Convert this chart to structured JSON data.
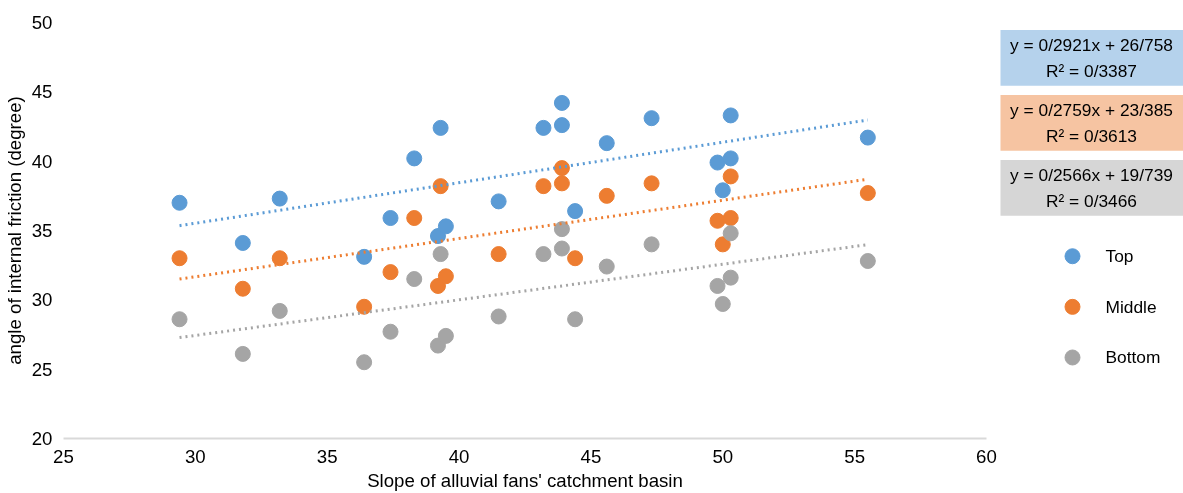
{
  "chart_data": {
    "type": "scatter",
    "xlabel": "Slope of alluvial fans' catchment basin",
    "ylabel": "angle of internal friction (degree)",
    "xlim": [
      25,
      60
    ],
    "xticks": [
      25,
      30,
      35,
      40,
      45,
      50,
      55,
      60
    ],
    "ylim": [
      20,
      50
    ],
    "yticks": [
      20,
      25,
      30,
      35,
      40,
      45,
      50
    ],
    "grid": false,
    "legend": "right",
    "marker": "circle",
    "annotations": [
      "y = 0/2921x + 26/758\nR² = 0/3387",
      "y = 0/2759x + 23/385\nR² = 0/3613",
      "y = 0/2566x + 19/739\nR² = 0/3466"
    ],
    "series": [
      {
        "name": "Top",
        "color": "#5b9bd5",
        "x": [
          29.4,
          31.8,
          33.2,
          36.4,
          37.4,
          38.3,
          39.3,
          39.2,
          39.5,
          41.5,
          43.2,
          43.9,
          43.9,
          44.4,
          45.6,
          47.3,
          49.8,
          50.3,
          50.0,
          50.3,
          55.5
        ],
        "values": [
          37.0,
          34.1,
          37.3,
          33.1,
          35.9,
          40.2,
          42.4,
          34.6,
          35.3,
          37.1,
          42.4,
          44.2,
          42.6,
          36.4,
          41.3,
          43.1,
          39.9,
          40.2,
          37.9,
          43.3,
          41.7
        ]
      },
      {
        "name": "Middle",
        "color": "#ed7d31",
        "x": [
          29.4,
          31.8,
          33.2,
          36.4,
          37.4,
          38.3,
          39.3,
          39.2,
          39.5,
          41.5,
          43.2,
          43.9,
          43.9,
          44.4,
          45.6,
          47.3,
          49.8,
          50.0,
          50.3,
          50.3,
          55.5
        ],
        "values": [
          33.0,
          30.8,
          33.0,
          29.5,
          32.0,
          35.9,
          38.2,
          31.0,
          31.7,
          33.3,
          38.2,
          39.5,
          38.4,
          33.0,
          37.5,
          38.4,
          35.7,
          34.0,
          35.9,
          38.9,
          37.7
        ]
      },
      {
        "name": "Bottom",
        "color": "#a5a5a5",
        "x": [
          29.4,
          31.8,
          33.2,
          36.4,
          37.4,
          38.3,
          39.3,
          39.2,
          39.5,
          41.5,
          43.2,
          43.9,
          43.9,
          44.4,
          45.6,
          47.3,
          49.8,
          50.0,
          50.3,
          50.3,
          55.5
        ],
        "values": [
          28.6,
          26.1,
          29.2,
          25.5,
          27.7,
          31.5,
          33.3,
          26.7,
          27.4,
          28.8,
          33.3,
          35.1,
          33.7,
          28.6,
          32.4,
          34.0,
          31.0,
          29.7,
          31.6,
          34.8,
          32.8
        ]
      },
      {
        "type": "line",
        "line_style": "dotted",
        "marker": "none",
        "color": "#5b9bd5",
        "x": [
          29.4,
          55.5
        ],
        "values": [
          35.35,
          42.97
        ]
      },
      {
        "type": "line",
        "line_style": "dotted",
        "marker": "none",
        "color": "#ed7d31",
        "x": [
          29.4,
          55.5
        ],
        "values": [
          31.5,
          38.7
        ]
      },
      {
        "type": "line",
        "line_style": "dotted",
        "marker": "none",
        "color": "#a5a5a5",
        "x": [
          29.4,
          55.5
        ],
        "values": [
          27.28,
          33.98
        ]
      }
    ]
  }
}
